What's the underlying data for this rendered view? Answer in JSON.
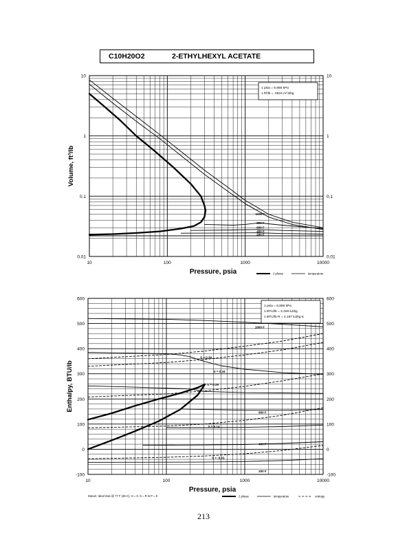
{
  "header": {
    "formula": "C10H20O2",
    "name": "2-ETHYLHEXYL ACETATE"
  },
  "page_number": "213",
  "chart_data": [
    {
      "type": "line",
      "id": "volume-chart",
      "title": "",
      "xlabel": "Pressure, psia",
      "ylabel": "Volume, ft^3/lb",
      "xscale": "log",
      "yscale": "log",
      "xlim": [
        10,
        10000
      ],
      "ylim": [
        0.01,
        10
      ],
      "grid": true,
      "x_ticks": [
        "10",
        "100",
        "1000",
        "10000"
      ],
      "y_ticks": [
        "0.01",
        "0.1",
        "1",
        "10"
      ],
      "y_ticks_right": [
        "0.01",
        "0.1",
        "1",
        "10"
      ],
      "conversion_notes": [
        "1 psia = 6.895 kPa",
        "1 ft^3/lb = .0624 m^3/kg"
      ],
      "legend": [
        {
          "label": "2 phase",
          "style": "thick"
        },
        {
          "label": "temperature",
          "style": "thin"
        }
      ],
      "legend_position": "bottom-right",
      "series": [
        {
          "name": "2 phase",
          "kind": "thick",
          "x": [
            10,
            15,
            25,
            40,
            70,
            120,
            200,
            270,
            300,
            310,
            300,
            270,
            220,
            150,
            80,
            40,
            20,
            10
          ],
          "y": [
            5.0,
            3.2,
            1.8,
            1.0,
            0.55,
            0.3,
            0.16,
            0.1,
            0.07,
            0.058,
            0.045,
            0.037,
            0.032,
            0.029,
            0.026,
            0.0245,
            0.0235,
            0.023
          ]
        },
        {
          "name": "",
          "kind": "thin",
          "x": [
            10,
            10000
          ],
          "y": [
            0.022,
            0.022
          ]
        },
        {
          "name": "",
          "kind": "thin",
          "x": [
            10,
            20,
            40,
            80,
            150,
            300,
            600,
            1000,
            2000,
            4000,
            10000
          ],
          "y": [
            7.2,
            3.5,
            1.75,
            0.9,
            0.47,
            0.23,
            0.12,
            0.075,
            0.045,
            0.034,
            0.028
          ]
        },
        {
          "name": "",
          "kind": "thin",
          "x": [
            10,
            20,
            40,
            80,
            150,
            300,
            600,
            1000,
            1300,
            2000,
            4000,
            10000
          ],
          "y": [
            8.5,
            4.2,
            2.1,
            1.05,
            0.55,
            0.27,
            0.14,
            0.085,
            0.07,
            0.05,
            0.037,
            0.03
          ]
        },
        {
          "name": "",
          "kind": "thin",
          "x": [
            300,
            700,
            1000,
            1500,
            3000,
            10000
          ],
          "y": [
            0.034,
            0.033,
            0.034,
            0.036,
            0.033,
            0.029
          ]
        },
        {
          "name": "",
          "kind": "thin",
          "x": [
            200,
            700,
            1500,
            3000,
            10000
          ],
          "y": [
            0.027,
            0.0275,
            0.028,
            0.027,
            0.026
          ]
        },
        {
          "name": "",
          "kind": "thin",
          "x": [
            150,
            700,
            1500,
            3000,
            10000
          ],
          "y": [
            0.0243,
            0.0245,
            0.0247,
            0.024,
            0.0235
          ]
        }
      ],
      "annotations": [
        {
          "text": "1000 F",
          "x": 1350,
          "y": 0.051
        },
        {
          "text": "800 F",
          "x": 1400,
          "y": 0.036
        },
        {
          "text": "600 F",
          "x": 1400,
          "y": 0.0305
        },
        {
          "text": "400 F",
          "x": 1400,
          "y": 0.0265
        },
        {
          "text": "200 F",
          "x": 1400,
          "y": 0.0235
        }
      ]
    },
    {
      "type": "line",
      "id": "enthalpy-chart",
      "title": "",
      "xlabel": "Pressure, psia",
      "ylabel": "Enthalpy, BTU/lb",
      "xscale": "log",
      "xlim": [
        10,
        10000
      ],
      "ylim": [
        -100,
        600
      ],
      "grid": true,
      "x_ticks": [
        "10",
        "100",
        "1000",
        "10000"
      ],
      "y_ticks": [
        "-100",
        "0",
        "100",
        "200",
        "300",
        "400",
        "500",
        "600"
      ],
      "y_ticks_right": [
        "-100",
        "0",
        "100",
        "200",
        "300",
        "400",
        "500",
        "600"
      ],
      "conversion_notes": [
        "1 psia = 6.895 kPa",
        "1 BTU/lb = 2.326 kJ/kg",
        "1 BTU/lb R = 4.187 kJ/kg K"
      ],
      "datum_note": "Datum: Ideal Gas @ 77 F (25 C), H = 0, S = R ln P = 0",
      "legend": [
        {
          "label": "2 phase",
          "style": "thick"
        },
        {
          "label": "temperature",
          "style": "thin"
        },
        {
          "label": "entropy",
          "style": "dashed"
        }
      ],
      "legend_position": "bottom-right",
      "series": [
        {
          "name": "2 phase",
          "kind": "thick",
          "x": [
            10,
            20,
            40,
            80,
            150,
            250,
            310
          ],
          "y": [
            118,
            143,
            173,
            200,
            223,
            245,
            258
          ]
        },
        {
          "name": "",
          "kind": "thick",
          "x": [
            10,
            20,
            40,
            80,
            150,
            250,
            310
          ],
          "y": [
            0,
            35,
            72,
            112,
            158,
            215,
            258
          ]
        },
        {
          "name": "",
          "kind": "thin",
          "x": [
            10,
            100,
            300,
            1000,
            3000,
            10000
          ],
          "y": [
            520,
            517,
            512,
            505,
            497,
            487
          ]
        },
        {
          "name": "",
          "kind": "thin",
          "x": [
            10,
            30,
            100,
            150,
            200,
            300,
            500,
            1000,
            3000,
            10000
          ],
          "y": [
            385,
            383,
            380,
            375,
            368,
            350,
            332,
            318,
            305,
            298
          ]
        },
        {
          "name": "",
          "kind": "thin",
          "x": [
            10,
            30,
            100,
            200,
            300,
            1000,
            3000,
            10000
          ],
          "y": [
            252,
            248,
            243,
            240,
            230,
            225,
            224,
            222
          ]
        },
        {
          "name": "",
          "kind": "thin",
          "x": [
            150,
            300,
            1000,
            3000,
            10000
          ],
          "y": [
            160,
            158,
            155,
            155,
            158
          ]
        },
        {
          "name": "",
          "kind": "thin",
          "x": [
            100,
            300,
            1000,
            3000,
            10000
          ],
          "y": [
            86,
            86,
            87,
            90,
            96
          ]
        },
        {
          "name": "",
          "kind": "thin",
          "x": [
            50,
            300,
            1000,
            3000,
            10000
          ],
          "y": [
            16,
            17,
            19,
            23,
            30
          ]
        },
        {
          "name": "",
          "kind": "thin",
          "x": [
            10,
            300,
            1000,
            3000,
            10000
          ],
          "y": [
            -52,
            -51,
            -49,
            -45,
            -38
          ]
        },
        {
          "name": "",
          "kind": "dashed",
          "x": [
            10,
            100,
            300,
            1000,
            3000,
            10000
          ],
          "y": [
            -38,
            -32,
            -27,
            -18,
            -5,
            15
          ]
        },
        {
          "name": "",
          "kind": "dashed",
          "x": [
            10,
            100,
            300,
            1000,
            3000,
            10000
          ],
          "y": [
            85,
            92,
            100,
            115,
            135,
            165
          ]
        },
        {
          "name": "",
          "kind": "dashed",
          "x": [
            10,
            100,
            300,
            1000,
            3000,
            10000
          ],
          "y": [
            208,
            220,
            232,
            250,
            272,
            300
          ]
        },
        {
          "name": "",
          "kind": "dashed",
          "x": [
            10,
            100,
            300,
            1000,
            3000,
            10000
          ],
          "y": [
            330,
            345,
            357,
            375,
            395,
            425
          ]
        },
        {
          "name": "",
          "kind": "dashed",
          "x": [
            10,
            100,
            300,
            1000,
            3000,
            10000
          ],
          "y": [
            360,
            377,
            390,
            410,
            430,
            460
          ]
        }
      ],
      "annotations": [
        {
          "text": "1000 F",
          "x": 1350,
          "y": 487
        },
        {
          "text": "S = 0.39",
          "x": 270,
          "y": 366
        },
        {
          "text": "S = 0.34",
          "x": 400,
          "y": 310
        },
        {
          "text": "S = 0.29",
          "x": 330,
          "y": 258
        },
        {
          "text": "800 F",
          "x": 1500,
          "y": 148
        },
        {
          "text": "S = 0.14",
          "x": 340,
          "y": 92
        },
        {
          "text": "400 F",
          "x": 1500,
          "y": 22
        },
        {
          "text": "S = -0.01",
          "x": 380,
          "y": -33
        },
        {
          "text": "200 F",
          "x": 1500,
          "y": -86
        }
      ]
    }
  ]
}
